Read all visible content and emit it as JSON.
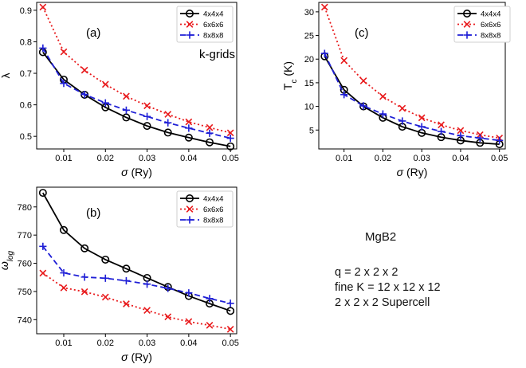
{
  "figure_notes": {
    "material": "MgB2",
    "lines": [
      "q = 2 x 2 x 2",
      "fine K = 12 x 12 x 12",
      "2 x 2 x 2 Supercell"
    ]
  },
  "chart_data": [
    {
      "type": "line",
      "panel_label": "(a)",
      "annotation": "k-grids",
      "xlabel": "σ (Ry)",
      "ylabel": "λ",
      "xlim": [
        0.0035,
        0.0515
      ],
      "ylim": [
        0.46,
        0.925
      ],
      "xticks": [
        "0.01",
        "0.02",
        "0.03",
        "0.04",
        "0.05"
      ],
      "yticks": [
        "0.5",
        "0.6",
        "0.7",
        "0.8",
        "0.9"
      ],
      "legend_position": "top-right",
      "x": [
        0.005,
        0.01,
        0.015,
        0.02,
        0.025,
        0.03,
        0.035,
        0.04,
        0.045,
        0.05
      ],
      "series": [
        {
          "name": "4x4x4",
          "color": "#000000",
          "values": [
            0.767,
            0.68,
            0.632,
            0.592,
            0.56,
            0.533,
            0.512,
            0.496,
            0.481,
            0.468
          ]
        },
        {
          "name": "6x6x6",
          "color": "#e8191b",
          "values": [
            0.91,
            0.768,
            0.71,
            0.665,
            0.627,
            0.597,
            0.57,
            0.546,
            0.528,
            0.511
          ]
        },
        {
          "name": "8x8x8",
          "color": "#1f1fd6",
          "values": [
            0.78,
            0.668,
            0.633,
            0.606,
            0.583,
            0.563,
            0.543,
            0.526,
            0.51,
            0.494
          ]
        }
      ]
    },
    {
      "type": "line",
      "panel_label": "(c)",
      "xlabel": "σ (Ry)",
      "ylabel": "T_c (K)",
      "xlim": [
        0.0035,
        0.0515
      ],
      "ylim": [
        1,
        32
      ],
      "xticks": [
        "0.01",
        "0.02",
        "0.03",
        "0.04",
        "0.05"
      ],
      "yticks": [
        "5",
        "10",
        "15",
        "20",
        "25",
        "30"
      ],
      "legend_position": "top-right",
      "x": [
        0.005,
        0.01,
        0.015,
        0.02,
        0.025,
        0.03,
        0.035,
        0.04,
        0.045,
        0.05
      ],
      "series": [
        {
          "name": "4x4x4",
          "color": "#000000",
          "values": [
            20.6,
            13.5,
            10.0,
            7.6,
            5.7,
            4.4,
            3.5,
            2.8,
            2.3,
            2.0
          ]
        },
        {
          "name": "6x6x6",
          "color": "#e8191b",
          "values": [
            31.0,
            19.7,
            15.4,
            12.1,
            9.6,
            7.6,
            6.1,
            4.9,
            4.0,
            3.3
          ]
        },
        {
          "name": "8x8x8",
          "color": "#1f1fd6",
          "values": [
            21.2,
            12.5,
            10.1,
            8.4,
            6.9,
            5.7,
            4.7,
            3.8,
            3.3,
            2.8
          ]
        }
      ]
    },
    {
      "type": "line",
      "panel_label": "(b)",
      "xlabel": "σ (Ry)",
      "ylabel": "ω_log",
      "xlim": [
        0.0035,
        0.0515
      ],
      "ylim": [
        735,
        787
      ],
      "xticks": [
        "0.01",
        "0.02",
        "0.03",
        "0.04",
        "0.05"
      ],
      "yticks": [
        "740",
        "750",
        "760",
        "770",
        "780"
      ],
      "legend_position": "top-right",
      "x": [
        0.005,
        0.01,
        0.015,
        0.02,
        0.025,
        0.03,
        0.035,
        0.04,
        0.045,
        0.05
      ],
      "series": [
        {
          "name": "4x4x4",
          "color": "#000000",
          "values": [
            785.0,
            771.8,
            765.3,
            761.3,
            758.1,
            754.8,
            751.6,
            748.4,
            745.7,
            743.1
          ]
        },
        {
          "name": "6x6x6",
          "color": "#e8191b",
          "values": [
            756.5,
            751.3,
            749.9,
            748.0,
            745.6,
            743.3,
            741.0,
            739.3,
            738.0,
            736.6
          ]
        },
        {
          "name": "8x8x8",
          "color": "#1f1fd6",
          "values": [
            766.0,
            756.6,
            755.1,
            754.7,
            753.8,
            752.6,
            751.1,
            749.5,
            747.5,
            745.8
          ]
        }
      ]
    }
  ]
}
